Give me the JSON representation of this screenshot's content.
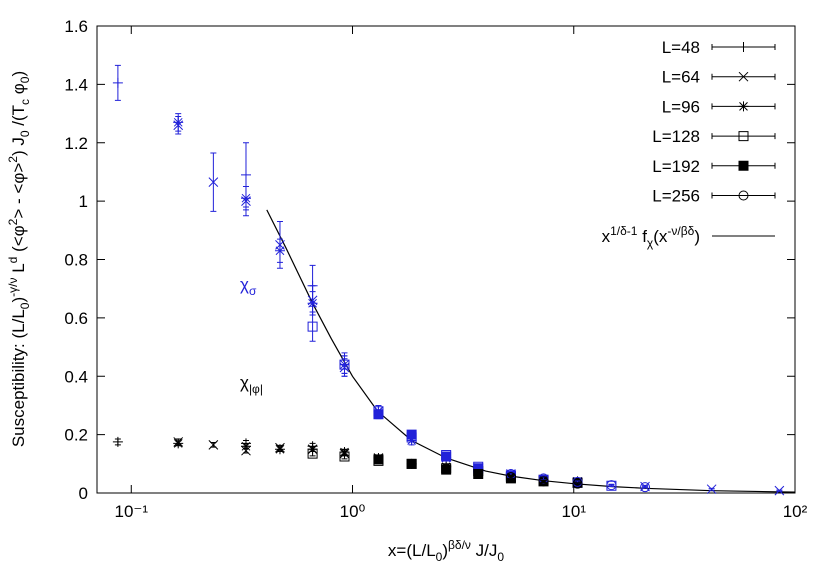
{
  "chart_data": {
    "type": "scatter",
    "xlabel": [
      "x=(L/L",
      "0",
      ")",
      "βδ/ν",
      " J/J",
      "0"
    ],
    "ylabel": [
      "Susceptibility: (L/L",
      "0",
      ")",
      "-γ/ν",
      " L",
      "d",
      " (<φ",
      "2",
      "> - <φ>",
      "2",
      ") J",
      "0",
      " /(T",
      "c",
      " φ",
      "0",
      ")"
    ],
    "xscale": "log",
    "xlim": [
      0.07,
      100
    ],
    "xticks": [
      {
        "value": 0.1,
        "label": "10⁻¹"
      },
      {
        "value": 1,
        "label": "10⁰"
      },
      {
        "value": 10,
        "label": "10¹"
      },
      {
        "value": 100,
        "label": "10²"
      }
    ],
    "ylim": [
      0,
      1.6
    ],
    "yticks": [
      0,
      0.2,
      0.4,
      0.6,
      0.8,
      1,
      1.2,
      1.4,
      1.6
    ],
    "legend": "upper right",
    "quantities": [
      {
        "label": [
          "χ",
          "σ"
        ],
        "color": "#2121d9"
      },
      {
        "label": [
          "χ",
          "|φ|"
        ],
        "color": "#000000"
      }
    ],
    "series": [
      {
        "name": "L=48",
        "marker": "plus",
        "x": [
          0.087,
          0.33,
          0.66,
          0.92
        ],
        "data": [
          {
            "values": [
              1.405,
              1.09,
              0.71,
              0.44
            ],
            "errors": [
              0.06,
              0.11,
              0.07,
              0.04
            ]
          },
          {
            "values": [
              0.175,
              0.17,
              0.16,
              0.14
            ],
            "errors": [
              0.01,
              0.01,
              0.01,
              0.01
            ]
          }
        ]
      },
      {
        "name": "L=64",
        "marker": "cross",
        "x": [
          0.163,
          0.235,
          0.33,
          0.47,
          0.66,
          0.92,
          1.31,
          5.2,
          10.4,
          21,
          42,
          85
        ],
        "data": [
          {
            "values": [
              1.26,
              1.065,
              1.0,
              0.85,
              0.66,
              0.43,
              0.28,
              0.065,
              0.038,
              0.022,
              0.013,
              0.008
            ],
            "errors": [
              0.03,
              0.1,
              0.05,
              0.08,
              0.05,
              0.03,
              0.02,
              0.01,
              0.005,
              0.004,
              0.003,
              0.002
            ]
          },
          {
            "values": [
              0.175,
              0.165,
              0.145,
              0.155,
              0.15,
              0.135,
              0.12,
              0.05,
              0.035,
              null,
              null,
              null
            ],
            "errors": [
              0.01,
              0.008,
              0.008,
              0.008,
              0.008,
              0.008,
              0.008,
              0.006,
              0.005,
              null,
              null,
              null
            ]
          }
        ]
      },
      {
        "name": "L=96",
        "marker": "star",
        "x": [
          0.163,
          0.33,
          0.47,
          0.66,
          0.92,
          1.31,
          1.85,
          2.65,
          5.2,
          10.4
        ],
        "data": [
          {
            "values": [
              1.27,
              1.01,
              0.83,
              0.65,
              0.44,
              0.28,
              0.18,
              0.12,
              0.065,
              0.035
            ],
            "errors": [
              0.03,
              0.04,
              0.04,
              0.04,
              0.03,
              0.02,
              0.015,
              0.01,
              0.008,
              0.005
            ]
          },
          {
            "values": [
              0.17,
              0.16,
              0.15,
              0.15,
              0.14,
              0.12,
              0.1,
              0.09,
              0.055,
              0.04
            ],
            "errors": [
              0.008,
              0.008,
              0.008,
              0.008,
              0.008,
              0.008,
              0.008,
              0.008,
              0.008,
              0.008
            ]
          }
        ]
      },
      {
        "name": "L=128",
        "marker": "box",
        "x": [
          0.66,
          0.92,
          1.31,
          1.85,
          2.65,
          3.7,
          5.2,
          7.3,
          10.4,
          14.8
        ],
        "data": [
          {
            "values": [
              0.57,
              0.44,
              0.28,
              0.19,
              0.13,
              0.09,
              0.06,
              0.045,
              0.035,
              0.025
            ],
            "errors": [
              0.05,
              0.03,
              0.02,
              0.015,
              0.01,
              0.008,
              0.006,
              0.005,
              0.004,
              0.003
            ]
          },
          {
            "values": [
              0.135,
              0.125,
              0.11,
              0.1,
              0.085,
              0.075,
              0.055,
              0.045,
              null,
              null
            ],
            "errors": [
              0.008,
              0.008,
              0.008,
              0.008,
              0.008,
              0.008,
              0.008,
              0.008,
              null,
              null
            ]
          }
        ]
      },
      {
        "name": "L=192",
        "marker": "filledbox",
        "x": [
          1.31,
          1.85,
          2.65,
          3.7,
          5.2,
          7.3,
          10.4
        ],
        "data": [
          {
            "values": [
              0.27,
              0.2,
              0.125,
              0.085,
              0.06,
              0.045,
              0.035
            ],
            "errors": [
              0.015,
              0.01,
              0.008,
              0.006,
              0.005,
              0.004,
              0.003
            ]
          },
          {
            "values": [
              0.115,
              0.1,
              0.08,
              0.065,
              0.05,
              0.04,
              0.035
            ],
            "errors": [
              0.008,
              0.008,
              0.008,
              0.006,
              0.006,
              0.005,
              0.005
            ]
          }
        ]
      },
      {
        "name": "L=256",
        "marker": "circle",
        "x": [
          5.2,
          7.3,
          10.4,
          14.8,
          21
        ],
        "data": [
          {
            "values": [
              0.065,
              0.05,
              0.038,
              0.027,
              0.02
            ],
            "errors": [
              0.005,
              0.004,
              0.003,
              0.003,
              0.002
            ]
          },
          {
            "values": [
              0.055,
              0.04,
              0.032,
              null,
              null
            ],
            "errors": [
              0.005,
              0.004,
              0.003,
              null,
              null
            ]
          }
        ]
      }
    ],
    "fit": {
      "name": [
        "x",
        "1/δ-1",
        " f",
        "χ",
        "(x",
        "-ν/βδ",
        ")"
      ],
      "color": "#000000",
      "x": [
        0.41,
        0.5,
        0.66,
        0.8,
        1,
        1.3,
        1.85,
        2.65,
        4,
        5.2,
        7.3,
        10,
        15,
        21,
        42,
        100
      ],
      "values": [
        0.97,
        0.84,
        0.65,
        0.53,
        0.4,
        0.28,
        0.18,
        0.12,
        0.075,
        0.058,
        0.042,
        0.032,
        0.022,
        0.016,
        0.008,
        0.003
      ]
    }
  }
}
